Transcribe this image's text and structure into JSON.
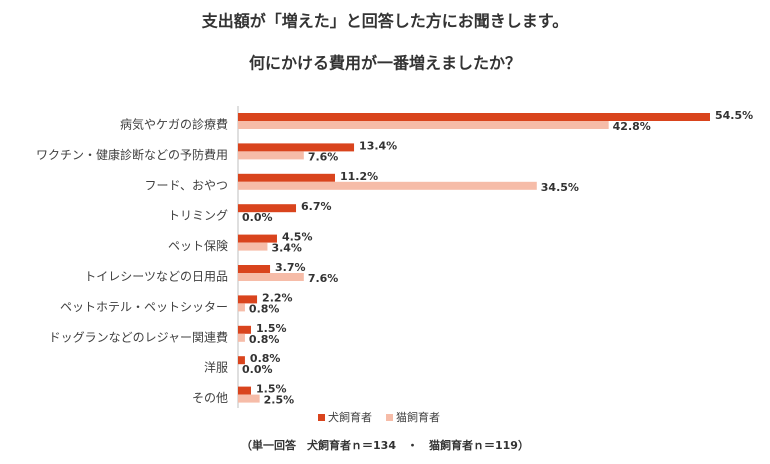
{
  "chart_data": {
    "type": "bar",
    "orientation": "horizontal",
    "title": [
      "支出額が「増えた」と回答した方にお聞きします。",
      "何にかける費用が一番増えましたか？"
    ],
    "categories": [
      "病気やケガの診療費",
      "ワクチン・健康診断などの予防費用",
      "フード、おやつ",
      "トリミング",
      "ペット保険",
      "トイレシーツなどの日用品",
      "ペットホテル・ペットシッター",
      "ドッグランなどのレジャー関連費",
      "洋服",
      "その他"
    ],
    "series": [
      {
        "name": "犬飼育者",
        "color": "#d9441d",
        "values": [
          54.5,
          13.4,
          11.2,
          6.7,
          4.5,
          3.7,
          2.2,
          1.5,
          0.8,
          1.5
        ],
        "value_labels": [
          "54.5%",
          "13.4%",
          "11.2%",
          "6.7%",
          "4.5%",
          "3.7%",
          "2.2%",
          "1.5%",
          "0.8%",
          "1.5%"
        ]
      },
      {
        "name": "猫飼育者",
        "color": "#f6bca8",
        "values": [
          42.8,
          7.6,
          34.5,
          0.0,
          3.4,
          7.6,
          0.8,
          0.8,
          0.0,
          2.5
        ],
        "value_labels": [
          "42.8%",
          "7.6%",
          "34.5%",
          "0.0%",
          "3.4%",
          "7.6%",
          "0.8%",
          "0.8%",
          "0.0%",
          "2.5%"
        ]
      }
    ],
    "note": "（単一回答　犬飼育者ｎ＝134　・　猫飼育者ｎ＝119）"
  }
}
